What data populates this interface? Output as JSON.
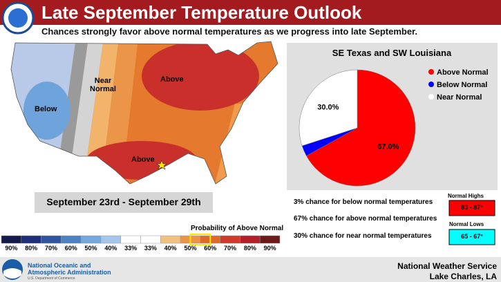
{
  "header": {
    "title": "Late September Temperature Outlook",
    "subtitle": "Chances strongly favor above normal temperatures as we progress into late September."
  },
  "map": {
    "labels": [
      "Below",
      "Near Normal",
      "Above",
      "Above"
    ]
  },
  "date_range": "September 23rd - September 29th",
  "legend": {
    "title": "Probability of Above Normal",
    "labels": [
      "90%",
      "80%",
      "70%",
      "60%",
      "50%",
      "40%",
      "33%",
      "33%",
      "40%",
      "50%",
      "60%",
      "70%",
      "80%",
      "90%"
    ]
  },
  "chart_data": {
    "type": "pie",
    "title": "SE Texas and SW Louisiana",
    "categories": [
      "Above Normal",
      "Below Normal",
      "Near Normal"
    ],
    "values": [
      67,
      3,
      30
    ],
    "value_labels": [
      "67.0%",
      null,
      "30.0%"
    ],
    "colors": [
      "#ff0000",
      "#0000ff",
      "#ffffff"
    ]
  },
  "notes": [
    "3% chance for below normal temperatures",
    "67% chance for above normal temperatures",
    "30% chance for near normal temperatures"
  ],
  "normals": {
    "highs_label": "Normal Highs",
    "highs": "83 - 87°",
    "lows_label": "Normal Lows",
    "lows": "65 - 67°"
  },
  "footer": {
    "agency": [
      "National Oceanic and",
      "Atmospheric Administration"
    ],
    "department": "U.S. Department of Commerce",
    "office": "National Weather Service",
    "location": "Lake Charles, LA"
  }
}
